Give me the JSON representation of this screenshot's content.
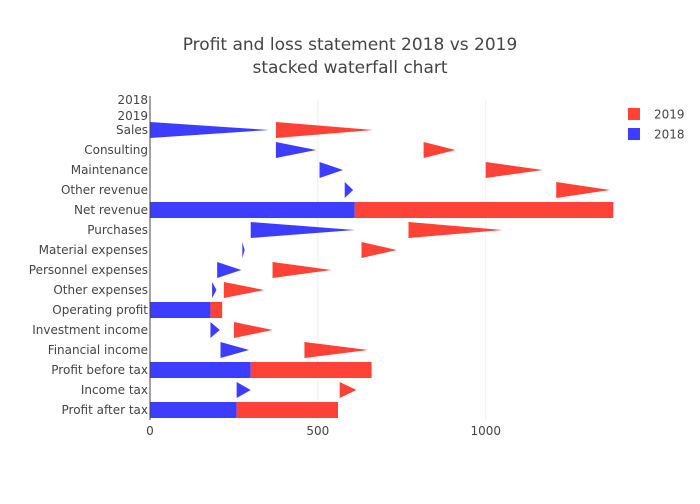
{
  "chart_data": {
    "type": "bar",
    "orientation": "horizontal",
    "title": "Profit and loss statement 2018 vs 2019",
    "subtitle": "stacked waterfall chart",
    "xlabel": "",
    "ylabel": "",
    "xlim": [
      0,
      1400
    ],
    "x_ticks": [
      "0",
      "500",
      "1000"
    ],
    "grid": true,
    "legend_position": "top-right",
    "colors": {
      "2019": "#ff4136",
      "2018": "#3d3dff"
    },
    "group_labels": [
      "2018",
      "2019"
    ],
    "categories": [
      "Sales",
      "Consulting",
      "Maintenance",
      "Other revenue",
      "Net revenue",
      "Purchases",
      "Material expenses",
      "Personnel expenses",
      "Other expenses",
      "Operating profit",
      "Investment income",
      "Financial income",
      "Profit before tax",
      "Income tax",
      "Profit after tax"
    ],
    "series": [
      {
        "name": "2018",
        "color": "#3d3dff",
        "segments": [
          {
            "category": "Sales",
            "start": 0,
            "end": 355,
            "kind": "relative"
          },
          {
            "category": "Consulting",
            "start": 375,
            "end": 495,
            "kind": "relative"
          },
          {
            "category": "Maintenance",
            "start": 505,
            "end": 575,
            "kind": "relative"
          },
          {
            "category": "Other revenue",
            "start": 580,
            "end": 605,
            "kind": "relative"
          },
          {
            "category": "Net revenue",
            "start": 0,
            "end": 610,
            "kind": "total"
          },
          {
            "category": "Purchases",
            "start": 300,
            "end": 610,
            "kind": "relative"
          },
          {
            "category": "Material expenses",
            "start": 275,
            "end": 282,
            "kind": "relative"
          },
          {
            "category": "Personnel expenses",
            "start": 200,
            "end": 272,
            "kind": "relative"
          },
          {
            "category": "Other expenses",
            "start": 185,
            "end": 198,
            "kind": "relative"
          },
          {
            "category": "Operating profit",
            "start": 0,
            "end": 180,
            "kind": "total"
          },
          {
            "category": "Investment income",
            "start": 180,
            "end": 208,
            "kind": "relative"
          },
          {
            "category": "Financial income",
            "start": 210,
            "end": 295,
            "kind": "relative"
          },
          {
            "category": "Profit before tax",
            "start": 0,
            "end": 300,
            "kind": "total"
          },
          {
            "category": "Income tax",
            "start": 258,
            "end": 300,
            "kind": "relative"
          },
          {
            "category": "Profit after tax",
            "start": 0,
            "end": 258,
            "kind": "total"
          }
        ]
      },
      {
        "name": "2019",
        "color": "#ff4136",
        "segments": [
          {
            "category": "Sales",
            "start": 375,
            "end": 665,
            "kind": "relative"
          },
          {
            "category": "Consulting",
            "start": 815,
            "end": 910,
            "kind": "relative"
          },
          {
            "category": "Maintenance",
            "start": 1000,
            "end": 1170,
            "kind": "relative"
          },
          {
            "category": "Other revenue",
            "start": 1210,
            "end": 1370,
            "kind": "relative"
          },
          {
            "category": "Net revenue",
            "start": 610,
            "end": 1380,
            "kind": "total"
          },
          {
            "category": "Purchases",
            "start": 770,
            "end": 1050,
            "kind": "relative"
          },
          {
            "category": "Material expenses",
            "start": 630,
            "end": 735,
            "kind": "relative"
          },
          {
            "category": "Personnel expenses",
            "start": 365,
            "end": 540,
            "kind": "relative"
          },
          {
            "category": "Other expenses",
            "start": 220,
            "end": 340,
            "kind": "relative"
          },
          {
            "category": "Operating profit",
            "start": 180,
            "end": 215,
            "kind": "total"
          },
          {
            "category": "Investment income",
            "start": 250,
            "end": 365,
            "kind": "relative"
          },
          {
            "category": "Financial income",
            "start": 460,
            "end": 650,
            "kind": "relative"
          },
          {
            "category": "Profit before tax",
            "start": 300,
            "end": 660,
            "kind": "total"
          },
          {
            "category": "Income tax",
            "start": 565,
            "end": 615,
            "kind": "relative"
          },
          {
            "category": "Profit after tax",
            "start": 258,
            "end": 560,
            "kind": "total"
          }
        ]
      }
    ]
  }
}
